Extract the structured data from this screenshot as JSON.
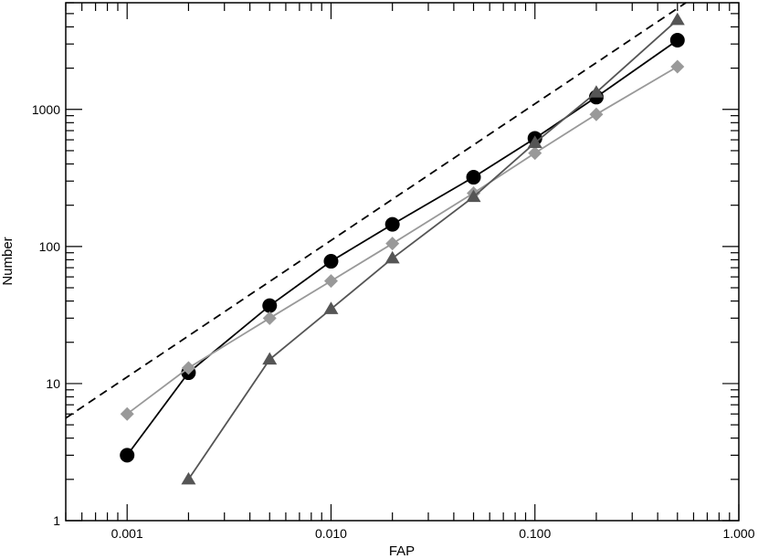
{
  "chart_data": {
    "type": "line",
    "xlabel": "FAP",
    "ylabel": "Number",
    "x_scale": "log",
    "y_scale": "log",
    "xlim": [
      0.0005,
      1.0
    ],
    "ylim": [
      1,
      6000
    ],
    "x_ticks": [
      {
        "value": 0.001,
        "label": "0.001"
      },
      {
        "value": 0.01,
        "label": "0.010"
      },
      {
        "value": 0.1,
        "label": "0.100"
      },
      {
        "value": 1.0,
        "label": "1.000"
      }
    ],
    "y_ticks": [
      {
        "value": 1,
        "label": "1"
      },
      {
        "value": 10,
        "label": "10"
      },
      {
        "value": 100,
        "label": "100"
      },
      {
        "value": 1000,
        "label": "1000"
      }
    ],
    "grid": false,
    "series": [
      {
        "marker": "circle",
        "color": "#000000",
        "points": [
          {
            "x": 0.001,
            "y": 3
          },
          {
            "x": 0.002,
            "y": 12
          },
          {
            "x": 0.005,
            "y": 37
          },
          {
            "x": 0.01,
            "y": 78
          },
          {
            "x": 0.02,
            "y": 145
          },
          {
            "x": 0.05,
            "y": 320
          },
          {
            "x": 0.1,
            "y": 615
          },
          {
            "x": 0.2,
            "y": 1230
          },
          {
            "x": 0.5,
            "y": 3200
          }
        ]
      },
      {
        "marker": "diamond",
        "color": "#999999",
        "points": [
          {
            "x": 0.001,
            "y": 6
          },
          {
            "x": 0.002,
            "y": 13
          },
          {
            "x": 0.005,
            "y": 30
          },
          {
            "x": 0.01,
            "y": 56
          },
          {
            "x": 0.02,
            "y": 105
          },
          {
            "x": 0.05,
            "y": 245
          },
          {
            "x": 0.1,
            "y": 480
          },
          {
            "x": 0.2,
            "y": 920
          },
          {
            "x": 0.5,
            "y": 2050
          }
        ]
      },
      {
        "marker": "triangle",
        "color": "#555555",
        "points": [
          {
            "x": 0.002,
            "y": 2
          },
          {
            "x": 0.005,
            "y": 15
          },
          {
            "x": 0.01,
            "y": 35
          },
          {
            "x": 0.02,
            "y": 82
          },
          {
            "x": 0.05,
            "y": 230
          },
          {
            "x": 0.1,
            "y": 570
          },
          {
            "x": 0.2,
            "y": 1330
          },
          {
            "x": 0.5,
            "y": 4500
          }
        ]
      }
    ],
    "reference_line": {
      "style": "dashed",
      "color": "#000000",
      "x": [
        0.0005,
        0.55
      ],
      "y": [
        5.6,
        6000
      ]
    }
  }
}
